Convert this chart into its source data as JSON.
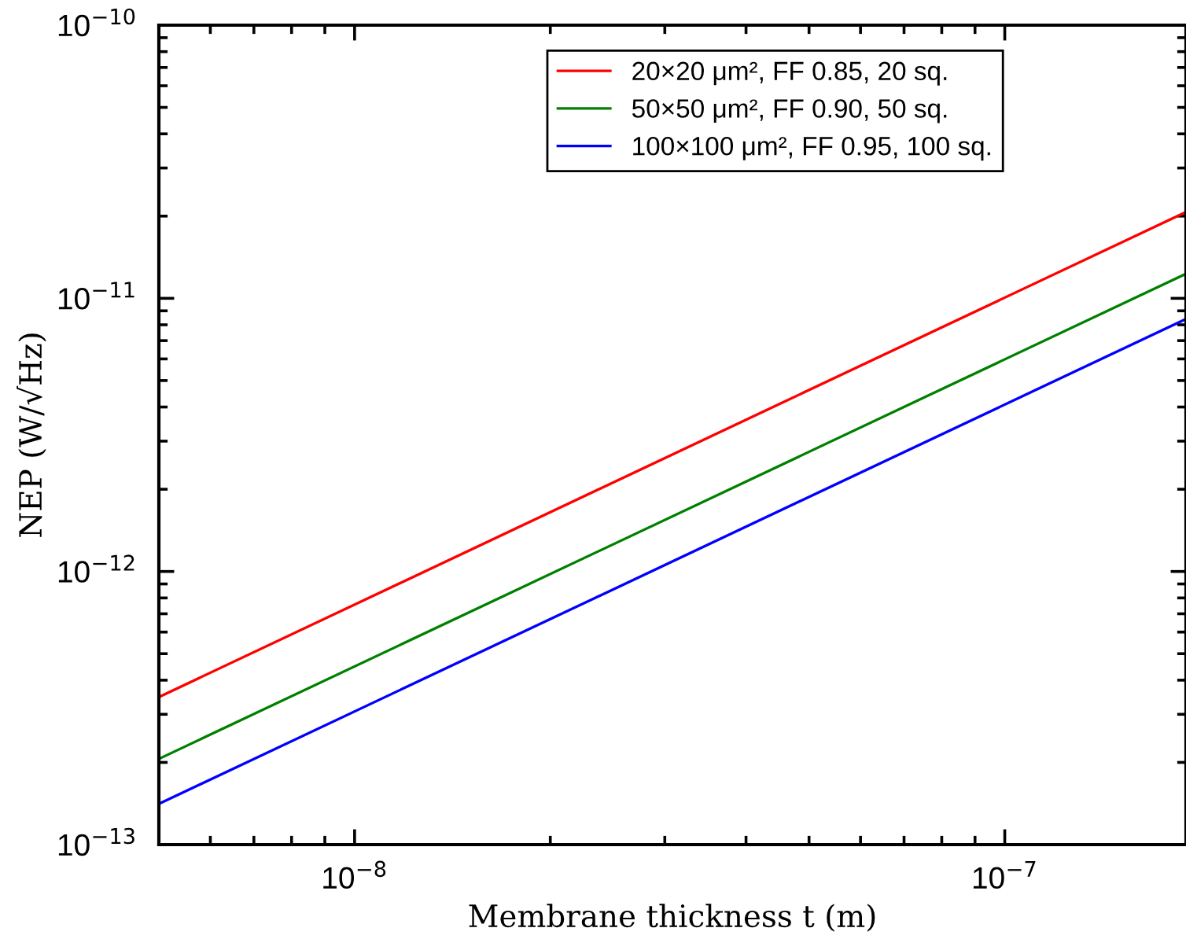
{
  "chart_data": {
    "type": "line",
    "xlabel": "Membrane thickness t (m)",
    "ylabel": "NEP (W/√Hz)",
    "x": [
      5e-09,
      1.9e-07
    ],
    "series": [
      {
        "name": "20×20 μm², FF 0.85, 20 sq.",
        "color": "#ff0000",
        "values": [
          3.47e-13,
          2.07e-11
        ]
      },
      {
        "name": "50×50 μm², FF 0.90, 50 sq.",
        "color": "#008000",
        "values": [
          2.06e-13,
          1.23e-11
        ]
      },
      {
        "name": "100×100 μm², FF 0.95, 100 sq.",
        "color": "#0000ff",
        "values": [
          1.41e-13,
          8.4e-12
        ]
      }
    ],
    "log": "xy",
    "xlim": [
      5e-09,
      1.9e-07
    ],
    "ylim": [
      1e-13,
      1e-10
    ],
    "xticks": [
      {
        "value": 1e-08,
        "label": "10$^{−8}$"
      },
      {
        "value": 1e-07,
        "label": "10$^{−7}$"
      }
    ],
    "yticks": [
      {
        "value": 1e-13,
        "label": "10$^{−13}$"
      },
      {
        "value": 1e-12,
        "label": "10$^{−12}$"
      },
      {
        "value": 1e-11,
        "label": "10$^{−11}$"
      },
      {
        "value": 1e-10,
        "label": "10$^{−10}$"
      }
    ],
    "grid": false,
    "legend": "top",
    "line_style": "solid",
    "marker": "none"
  }
}
